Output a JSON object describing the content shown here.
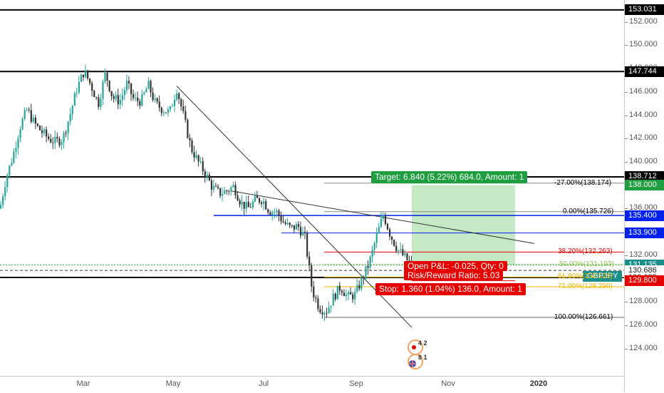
{
  "symbol": "GBPJPY",
  "colors": {
    "up": "#26a69a",
    "down": "#333333",
    "target_green": "#1e9e3e",
    "stop_red": "#e60000",
    "blue_line": "#0022ee",
    "profit_zone": "#bfe6bf"
  },
  "price_axis": {
    "ticks": [
      "152.000",
      "150.000",
      "148.000",
      "146.000",
      "144.000",
      "142.000",
      "140.000",
      "138.000",
      "136.000",
      "134.000",
      "132.000",
      "130.000",
      "128.000",
      "126.000",
      "124.000"
    ],
    "tags": [
      {
        "label": "153.031",
        "style": "black"
      },
      {
        "label": "147.744",
        "style": "black"
      },
      {
        "label": "138.712",
        "style": "black"
      },
      {
        "label": "138.000",
        "style": "green"
      },
      {
        "label": "135.400",
        "style": "blue"
      },
      {
        "label": "133.900",
        "style": "blue"
      },
      {
        "label": "131.160",
        "style": "dark"
      },
      {
        "label": "131.135",
        "style": "teal"
      },
      {
        "label": "130.686",
        "style": "white"
      },
      {
        "label": "130.085",
        "style": "white"
      },
      {
        "label": "129.800",
        "style": "red"
      }
    ]
  },
  "time_axis": {
    "labels": [
      "Mar",
      "May",
      "Jul",
      "Sep",
      "Nov",
      "2020"
    ]
  },
  "symbol_badge": "GBPJPY",
  "fib_levels": [
    {
      "label": "-27.00%(138.174)",
      "color": "#000000"
    },
    {
      "label": "0.00%(135.726)",
      "color": "#000000"
    },
    {
      "label": "38.20%(132.263)",
      "color": "#e60000"
    },
    {
      "label": "50.00%(131.193)",
      "color": "#8bc34a"
    },
    {
      "label": "61.80%(130.124)",
      "color": "#f0b400"
    },
    {
      "label": "71.00%(129.290)",
      "color": "#f0b400"
    },
    {
      "label": "100.00%(126.661)",
      "color": "#000000"
    }
  ],
  "position": {
    "target_label": "Target: 6.840 (5.22%) 684.0, Amount: 1",
    "pl_label": "Open P&L: -0.025, Qty: 0",
    "rr_label": "Risk/Reward Ratio: 5.03",
    "stop_label": "Stop: 1.360 (1.04%) 136.0, Amount: 1"
  },
  "events": {
    "badge_top": "4 2",
    "badge_bottom": "8 1"
  },
  "chart_data": {
    "type": "candlestick",
    "symbol": "GBPJPY",
    "x_labels": [
      "Mar",
      "May",
      "Jul",
      "Sep",
      "Nov",
      "2020"
    ],
    "ylim": [
      123.0,
      153.7
    ],
    "horizontal_levels": [
      153.031,
      147.744,
      138.712,
      135.4,
      133.9,
      130.085
    ],
    "position": {
      "entry": 131.16,
      "target": 138.0,
      "stop": 129.8
    },
    "fibonacci": {
      "0%": 135.726,
      "38.2%": 132.263,
      "50%": 131.193,
      "61.8%": 130.124,
      "71%": 129.29,
      "100%": 126.661,
      "-27%": 138.174
    },
    "path": [
      [
        0,
        136.0
      ],
      [
        8,
        138.5
      ],
      [
        18,
        140.5
      ],
      [
        28,
        143.0
      ],
      [
        38,
        144.5
      ],
      [
        48,
        143.3
      ],
      [
        58,
        142.6
      ],
      [
        68,
        142.0
      ],
      [
        78,
        141.7
      ],
      [
        88,
        142.0
      ],
      [
        98,
        144.0
      ],
      [
        108,
        146.3
      ],
      [
        118,
        147.8
      ],
      [
        128,
        146.5
      ],
      [
        138,
        145.0
      ],
      [
        148,
        147.6
      ],
      [
        158,
        145.5
      ],
      [
        168,
        145.2
      ],
      [
        178,
        146.7
      ],
      [
        188,
        145.3
      ],
      [
        198,
        145.2
      ],
      [
        208,
        146.6
      ],
      [
        218,
        145.0
      ],
      [
        228,
        144.5
      ],
      [
        238,
        144.2
      ],
      [
        248,
        146.3
      ],
      [
        258,
        143.8
      ],
      [
        268,
        141.2
      ],
      [
        278,
        140.0
      ],
      [
        288,
        139.0
      ],
      [
        298,
        137.8
      ],
      [
        308,
        137.3
      ],
      [
        318,
        137.5
      ],
      [
        328,
        137.9
      ],
      [
        338,
        136.5
      ],
      [
        348,
        136.0
      ],
      [
        358,
        136.7
      ],
      [
        368,
        136.8
      ],
      [
        378,
        135.8
      ],
      [
        388,
        135.7
      ],
      [
        398,
        134.8
      ],
      [
        408,
        134.3
      ],
      [
        418,
        134.5
      ],
      [
        428,
        133.5
      ],
      [
        438,
        129.0
      ],
      [
        448,
        127.5
      ],
      [
        458,
        127.2
      ],
      [
        468,
        128.4
      ],
      [
        478,
        129.3
      ],
      [
        488,
        128.4
      ],
      [
        498,
        128.6
      ],
      [
        508,
        129.9
      ],
      [
        518,
        131.3
      ],
      [
        528,
        133.5
      ],
      [
        538,
        135.5
      ],
      [
        548,
        133.7
      ],
      [
        558,
        132.5
      ],
      [
        568,
        131.8
      ],
      [
        578,
        131.15
      ]
    ]
  }
}
